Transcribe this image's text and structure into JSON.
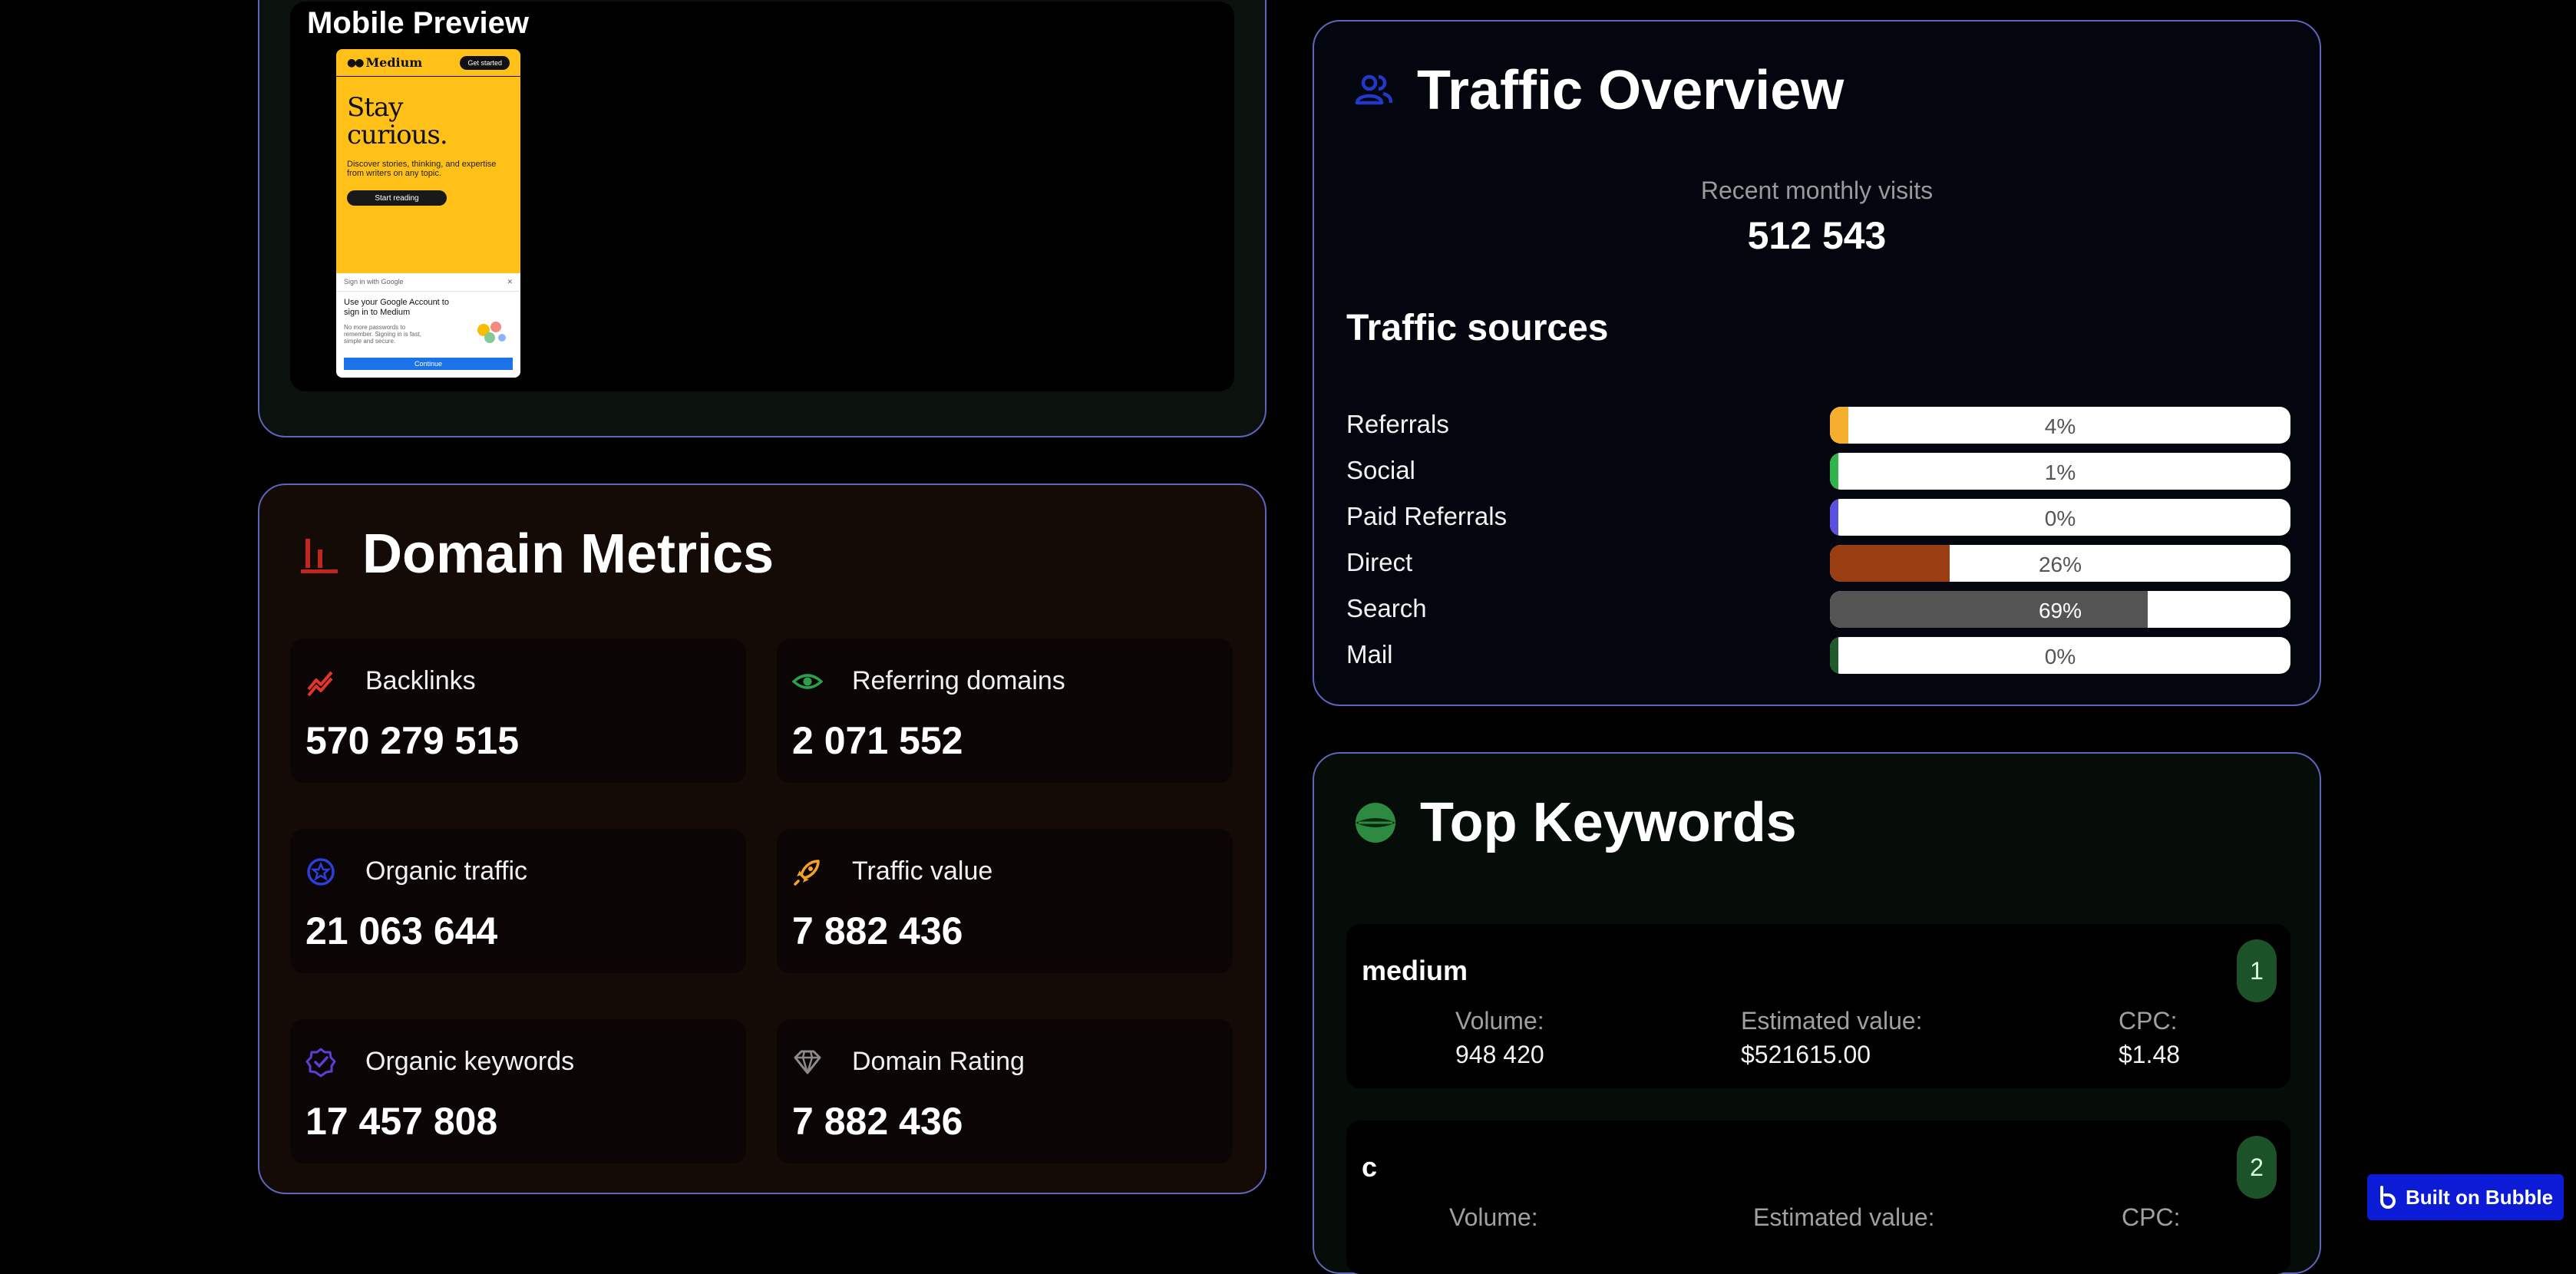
{
  "mobile_preview": {
    "title": "Mobile Preview",
    "phone": {
      "logo": "Medium",
      "get_started": "Get started",
      "headline_1": "Stay",
      "headline_2": "curious.",
      "subtext": "Discover stories, thinking, and expertise from writers on any topic.",
      "start_reading": "Start reading",
      "google_header": "Sign in with Google",
      "google_title": "Use your Google Account to sign in to Medium",
      "google_text": "No more passwords to remember. Signing in is fast, simple and secure.",
      "google_continue": "Continue"
    }
  },
  "domain_metrics": {
    "title": "Domain Metrics",
    "icon": "bar-chart-icon",
    "items": [
      {
        "label": "Backlinks",
        "value": "570 279 515",
        "icon": "trend-up-icon",
        "color": "#e0352b"
      },
      {
        "label": "Referring domains",
        "value": "2 071 552",
        "icon": "eye-icon",
        "color": "#2e9e4a"
      },
      {
        "label": "Organic traffic",
        "value": "21 063 644",
        "icon": "star-badge-icon",
        "color": "#2b3fe0"
      },
      {
        "label": "Traffic value",
        "value": "7 882 436",
        "icon": "rocket-icon",
        "color": "#f3a323"
      },
      {
        "label": "Organic keywords",
        "value": "17 457 808",
        "icon": "verified-badge-icon",
        "color": "#5b3fd6"
      },
      {
        "label": "Domain Rating",
        "value": "7 882 436",
        "icon": "diamond-icon",
        "color": "#8a8a8a"
      }
    ]
  },
  "traffic_overview": {
    "title": "Traffic Overview",
    "icon": "users-icon",
    "visits_label": "Recent monthly visits",
    "visits_value": "512 543",
    "sources_title": "Traffic sources",
    "sources": [
      {
        "name": "Referrals",
        "percent": 4,
        "label": "4%",
        "color": "#f6ae2d"
      },
      {
        "name": "Social",
        "percent": 1,
        "label": "1%",
        "color": "#2fb34a"
      },
      {
        "name": "Paid Referrals",
        "percent": 0,
        "label": "0%",
        "color": "#5b4fe0"
      },
      {
        "name": "Direct",
        "percent": 26,
        "label": "26%",
        "color": "#9a3d12"
      },
      {
        "name": "Search",
        "percent": 69,
        "label": "69%",
        "color": "#545454"
      },
      {
        "name": "Mail",
        "percent": 0,
        "label": "0%",
        "color": "#1f5a2a"
      }
    ]
  },
  "top_keywords": {
    "title": "Top Keywords",
    "icon": "globe-icon",
    "volume_label": "Volume:",
    "value_label": "Estimated value:",
    "cpc_label": "CPC:",
    "items": [
      {
        "keyword": "medium",
        "rank": "1",
        "volume": "948 420",
        "value": "$521615.00",
        "cpc": "$1.48"
      },
      {
        "keyword": "c",
        "rank": "2",
        "volume": "",
        "value": "",
        "cpc": ""
      }
    ]
  },
  "badge": {
    "label": "Built on Bubble",
    "icon": "bubble-logo-icon"
  }
}
